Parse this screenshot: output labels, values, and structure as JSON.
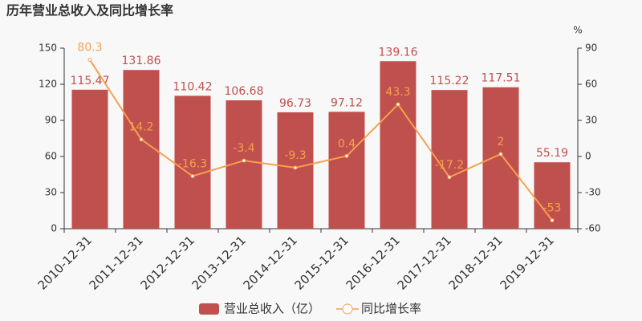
{
  "chart_data": {
    "type": "bar",
    "title": "历年营业总收入及同比增长率",
    "categories": [
      "2010-12-31",
      "2011-12-31",
      "2012-12-31",
      "2013-12-31",
      "2014-12-31",
      "2015-12-31",
      "2016-12-31",
      "2017-12-31",
      "2018-12-31",
      "2019-12-31"
    ],
    "series": [
      {
        "name": "营业总收入（亿）",
        "type": "bar",
        "color": "#c0504d",
        "values": [
          115.47,
          131.86,
          110.42,
          106.68,
          96.73,
          97.12,
          139.16,
          115.22,
          117.51,
          55.19
        ]
      },
      {
        "name": "同比增长率",
        "type": "line",
        "axis": "y2",
        "color": "#f5a04e",
        "values": [
          80.3,
          14.2,
          -16.3,
          -3.4,
          -9.3,
          0.4,
          43.3,
          -17.2,
          2,
          -53
        ]
      }
    ],
    "ylim": [
      0,
      150
    ],
    "yticks": [
      0,
      30,
      60,
      90,
      120,
      150
    ],
    "y2lim": [
      -60,
      90
    ],
    "y2ticks": [
      -60,
      -30,
      0,
      30,
      60,
      90
    ],
    "y2label": "%",
    "grid": false,
    "legend": "bottom"
  }
}
